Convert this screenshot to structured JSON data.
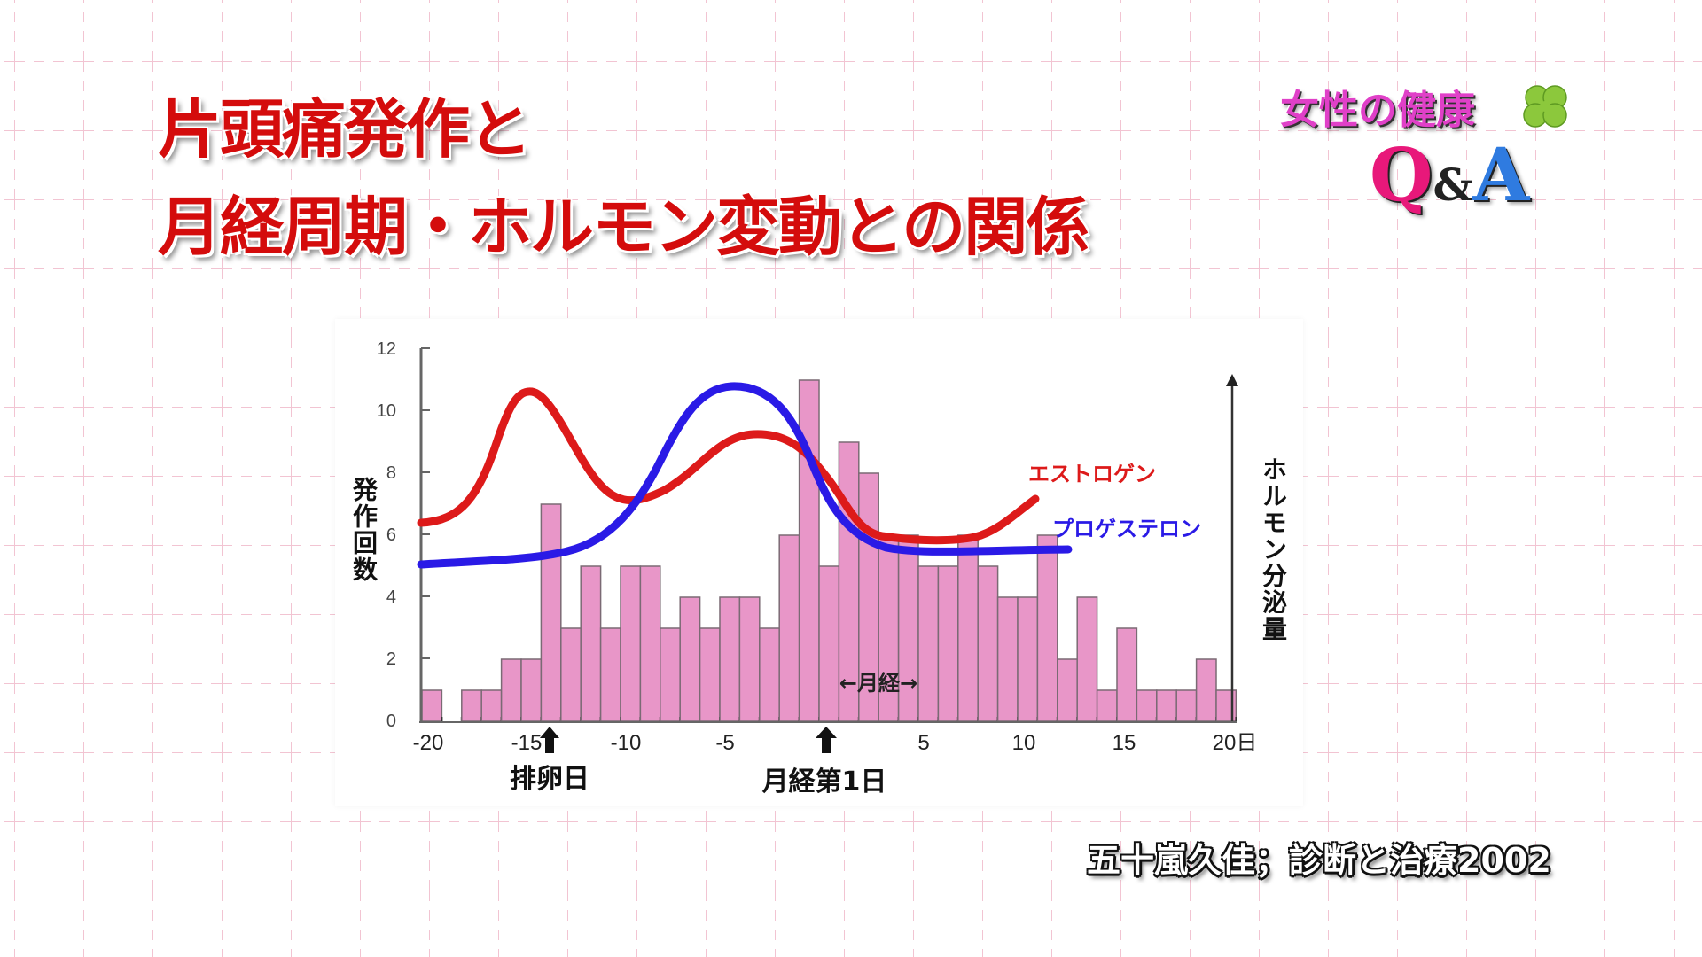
{
  "slide": {
    "title_line1": "片頭痛発作と",
    "title_line2": "月経周期・ホルモン変動との関係",
    "title_color": "#d40c0c",
    "citation": "五十嵐久佳；診断と治療2002"
  },
  "logo": {
    "line1": "女性の健康",
    "q": "Q",
    "amp": "&",
    "a": "A",
    "icon": "clover-icon"
  },
  "chart_data": {
    "type": "bar",
    "title": "",
    "xlabel": "日",
    "ylabel": "発作回数",
    "y2label": "ホルモン分泌量",
    "ylim": [
      0,
      12
    ],
    "yticks": [
      0,
      2,
      4,
      6,
      8,
      10,
      12
    ],
    "xticks": [
      "-20",
      "-15",
      "-10",
      "-5",
      "",
      "5",
      "10",
      "15",
      "20日"
    ],
    "xtick_values": [
      -20,
      -15,
      -10,
      -5,
      0,
      5,
      10,
      15,
      20
    ],
    "categories": [
      -20,
      -19,
      -18,
      -17,
      -16,
      -15,
      -14,
      -13,
      -12,
      -11,
      -10,
      -9,
      -8,
      -7,
      -6,
      -5,
      -4,
      -3,
      -2,
      -1,
      0,
      1,
      2,
      3,
      4,
      5,
      6,
      7,
      8,
      9,
      10,
      11,
      12,
      13,
      14,
      15,
      16,
      17,
      18,
      19,
      20
    ],
    "values": [
      1,
      0,
      1,
      1,
      2,
      2,
      7,
      3,
      5,
      3,
      5,
      5,
      3,
      4,
      3,
      4,
      4,
      3,
      6,
      11,
      5,
      9,
      8,
      6,
      6,
      5,
      5,
      6,
      5,
      4,
      4,
      6,
      2,
      4,
      1,
      3,
      1,
      1,
      1,
      2,
      1
    ],
    "bar_color": "#e896c8",
    "series": [
      {
        "name": "発作回数",
        "type": "bar",
        "color": "#e896c8"
      },
      {
        "name": "エストロゲン",
        "type": "line",
        "color": "#dd1a1a",
        "shape": "peak ~day -15 (high), trough ~day -9, second peak ~day -5, falls to low plateau days 2-8, rises toward day 11"
      },
      {
        "name": "プロゲステロン",
        "type": "line",
        "color": "#2a1ae6",
        "shape": "low flat until ~day -13, peak ~day -5, falls to low plateau from day 2 to day 12"
      }
    ],
    "annotations": [
      {
        "text": "排卵日",
        "x": -14,
        "arrow": "up"
      },
      {
        "text": "月経第1日",
        "x": 0.5,
        "arrow": "up"
      },
      {
        "text": "←月経→",
        "x_range": [
          0,
          5
        ]
      }
    ],
    "legend": [
      "エストロゲン",
      "プロゲステロン"
    ],
    "grid": false
  },
  "chart_labels": {
    "ylabel": "発作回数",
    "y2label": "ホルモン分泌量",
    "estrogen": "エストロゲン",
    "progesterone": "プロゲステロン",
    "ovulation": "排卵日",
    "menses_day1": "月経第1日",
    "menses_span": "←月経→",
    "yt0": "0",
    "yt2": "2",
    "yt4": "4",
    "yt6": "6",
    "yt8": "8",
    "yt10": "10",
    "yt12": "12",
    "xt_m20": "-20",
    "xt_m15": "-15",
    "xt_m10": "-10",
    "xt_m5": "-5",
    "xt_5": "5",
    "xt_10": "10",
    "xt_15": "15",
    "xt_20": "20日"
  }
}
